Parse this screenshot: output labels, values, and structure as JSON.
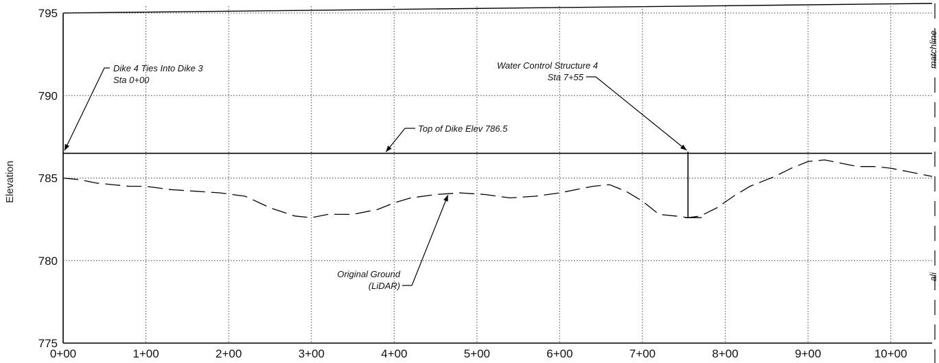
{
  "chart_data": {
    "type": "line",
    "ylabel": "Elevation",
    "xlabel": "",
    "xlim": [
      0,
      1050
    ],
    "ylim": [
      775,
      795
    ],
    "grid": true,
    "x_ticks": [
      {
        "value": 0,
        "label": "0+00"
      },
      {
        "value": 100,
        "label": "1+00"
      },
      {
        "value": 200,
        "label": "2+00"
      },
      {
        "value": 300,
        "label": "3+00"
      },
      {
        "value": 400,
        "label": "4+00"
      },
      {
        "value": 500,
        "label": "5+00"
      },
      {
        "value": 600,
        "label": "6+00"
      },
      {
        "value": 700,
        "label": "7+00"
      },
      {
        "value": 800,
        "label": "8+00"
      },
      {
        "value": 900,
        "label": "9+00"
      },
      {
        "value": 1000,
        "label": "10+00"
      }
    ],
    "y_ticks": [
      {
        "value": 775,
        "label": "775"
      },
      {
        "value": 780,
        "label": "780"
      },
      {
        "value": 785,
        "label": "785"
      },
      {
        "value": 790,
        "label": "790"
      },
      {
        "value": 795,
        "label": "795"
      }
    ],
    "series": [
      {
        "name": "Top of Dike Elev 786.5",
        "style": "solid",
        "color": "#000000",
        "x": [
          0,
          1050
        ],
        "y": [
          786.5,
          786.5
        ]
      },
      {
        "name": "Original Ground (LiDAR)",
        "style": "dashed",
        "color": "#000000",
        "x": [
          0,
          20,
          40,
          60,
          80,
          100,
          130,
          160,
          190,
          220,
          250,
          280,
          300,
          320,
          350,
          380,
          400,
          420,
          450,
          480,
          510,
          540,
          570,
          600,
          620,
          640,
          660,
          680,
          700,
          720,
          740,
          755,
          770,
          790,
          810,
          830,
          860,
          880,
          900,
          920,
          940,
          960,
          980,
          1000,
          1020,
          1050
        ],
        "y": [
          785.0,
          784.9,
          784.7,
          784.6,
          784.5,
          784.5,
          784.3,
          784.2,
          784.1,
          783.9,
          783.2,
          782.7,
          782.6,
          782.8,
          782.8,
          783.1,
          783.5,
          783.8,
          784.0,
          784.1,
          784.0,
          783.8,
          783.9,
          784.1,
          784.3,
          784.5,
          784.6,
          784.2,
          783.6,
          782.8,
          782.7,
          782.6,
          782.7,
          783.2,
          783.9,
          784.5,
          785.1,
          785.6,
          786.0,
          786.1,
          785.9,
          785.7,
          785.7,
          785.6,
          785.4,
          785.1
        ]
      }
    ],
    "markers": [
      {
        "name": "water-control-structure",
        "x": 755,
        "y_top": 786.6,
        "y_bottom": 782.6
      }
    ],
    "annotations": [
      {
        "id": "dike4",
        "lines": [
          "Dike 4 Ties Into Dike 3",
          "Sta 0+00"
        ],
        "points_to": {
          "x": 0,
          "y": 786.5
        }
      },
      {
        "id": "wcs",
        "lines": [
          "Water Control Structure 4",
          "Sta 7+55"
        ],
        "points_to": {
          "x": 755,
          "y": 786.6
        }
      },
      {
        "id": "tod",
        "lines": [
          "Top of Dike Elev 786.5"
        ],
        "points_to": {
          "x": 390,
          "y": 786.5
        }
      },
      {
        "id": "og",
        "lines": [
          "Original Ground",
          "(LiDAR)"
        ],
        "points_to": {
          "x": 465,
          "y": 784.1
        }
      }
    ],
    "matchline": {
      "top_text": "matchline",
      "bottom_text": "ali"
    }
  }
}
